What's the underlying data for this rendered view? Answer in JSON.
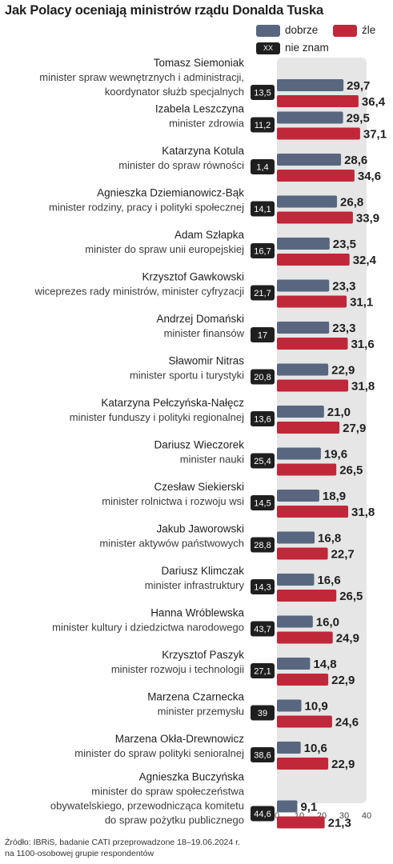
{
  "title": "Jak Polacy oceniają ministrów rządu Donalda Tuska",
  "legend": {
    "good_label": "dobrze",
    "bad_label": "źle",
    "unknown_badge": "XX",
    "unknown_label": "nie znam"
  },
  "colors": {
    "good": "#58677f",
    "bad": "#c0283a",
    "panel": "#e6e6e6",
    "badge": "#1f1f1f"
  },
  "footer": {
    "line1": "Źródło: IBRiS, badanie CATI przeprowadzone 18–19.06.2024 r.",
    "line2": "na 1100-osobowej grupie respondentów"
  },
  "chart_data": {
    "type": "bar",
    "orientation": "horizontal",
    "xlim": [
      0,
      40
    ],
    "xticks": [
      "0",
      "10",
      "20",
      "30",
      "40"
    ],
    "series": [
      {
        "name": "dobrze",
        "values": [
          29.7,
          29.5,
          28.6,
          26.8,
          23.5,
          23.3,
          23.3,
          22.9,
          21.0,
          19.6,
          18.9,
          16.8,
          16.6,
          16.0,
          14.8,
          10.9,
          10.6,
          9.1
        ]
      },
      {
        "name": "źle",
        "values": [
          36.4,
          37.1,
          34.6,
          33.9,
          32.4,
          31.1,
          31.6,
          31.8,
          27.9,
          26.5,
          31.8,
          22.7,
          26.5,
          24.9,
          22.9,
          24.6,
          22.9,
          21.3
        ]
      }
    ],
    "rows": [
      {
        "name": "Tomasz Siemoniak",
        "role": [
          "minister spraw wewnętrznych i administracji,",
          "koordynator służb specjalnych"
        ],
        "good": "29,7",
        "bad": "36,4",
        "unknown": "13,5"
      },
      {
        "name": "Izabela Leszczyna",
        "role": [
          "minister zdrowia"
        ],
        "good": "29,5",
        "bad": "37,1",
        "unknown": "11,2"
      },
      {
        "name": "Katarzyna Kotula",
        "role": [
          "minister do spraw równości"
        ],
        "good": "28,6",
        "bad": "34,6",
        "unknown": "1,4"
      },
      {
        "name": "Agnieszka Dziemianowicz-Bąk",
        "role": [
          "minister rodziny, pracy i polityki społecznej"
        ],
        "good": "26,8",
        "bad": "33,9",
        "unknown": "14,1"
      },
      {
        "name": "Adam Szłapka",
        "role": [
          "minister do spraw unii europejskiej"
        ],
        "good": "23,5",
        "bad": "32,4",
        "unknown": "16,7"
      },
      {
        "name": "Krzysztof Gawkowski",
        "role": [
          "wiceprezes rady ministrów, minister cyfryzacji"
        ],
        "good": "23,3",
        "bad": "31,1",
        "unknown": "21,7"
      },
      {
        "name": "Andrzej Domański",
        "role": [
          "minister finansów"
        ],
        "good": "23,3",
        "bad": "31,6",
        "unknown": "17"
      },
      {
        "name": "Sławomir Nitras",
        "role": [
          "minister sportu i turystyki"
        ],
        "good": "22,9",
        "bad": "31,8",
        "unknown": "20,8"
      },
      {
        "name": "Katarzyna Pełczyńska-Nałęcz",
        "role": [
          "minister funduszy i polityki regionalnej"
        ],
        "good": "21,0",
        "bad": "27,9",
        "unknown": "13,6"
      },
      {
        "name": "Dariusz Wieczorek",
        "role": [
          "minister nauki"
        ],
        "good": "19,6",
        "bad": "26,5",
        "unknown": "25,4"
      },
      {
        "name": "Czesław Siekierski",
        "role": [
          "minister rolnictwa i rozwoju wsi"
        ],
        "good": "18,9",
        "bad": "31,8",
        "unknown": "14,5"
      },
      {
        "name": "Jakub Jaworowski",
        "role": [
          "minister aktywów państwowych"
        ],
        "good": "16,8",
        "bad": "22,7",
        "unknown": "28,8"
      },
      {
        "name": "Dariusz Klimczak",
        "role": [
          "minister infrastruktury"
        ],
        "good": "16,6",
        "bad": "26,5",
        "unknown": "14,3"
      },
      {
        "name": "Hanna Wróblewska",
        "role": [
          "minister kultury i dziedzictwa narodowego"
        ],
        "good": "16,0",
        "bad": "24,9",
        "unknown": "43,7"
      },
      {
        "name": "Krzysztof Paszyk",
        "role": [
          "minister rozwoju i technologii"
        ],
        "good": "14,8",
        "bad": "22,9",
        "unknown": "27,1"
      },
      {
        "name": "Marzena Czarnecka",
        "role": [
          "minister przemysłu"
        ],
        "good": "10,9",
        "bad": "24,6",
        "unknown": "39"
      },
      {
        "name": "Marzena Okła-Drewnowicz",
        "role": [
          "minister do spraw polityki senioralnej"
        ],
        "good": "10,6",
        "bad": "22,9",
        "unknown": "38,6"
      },
      {
        "name": "Agnieszka Buczyńska",
        "role": [
          "minister do spraw społeczeństwa",
          "obywatelskiego, przewodnicząca komitetu",
          "do spraw pożytku publicznego"
        ],
        "good": "9,1",
        "bad": "21,3",
        "unknown": "44,6"
      }
    ]
  }
}
